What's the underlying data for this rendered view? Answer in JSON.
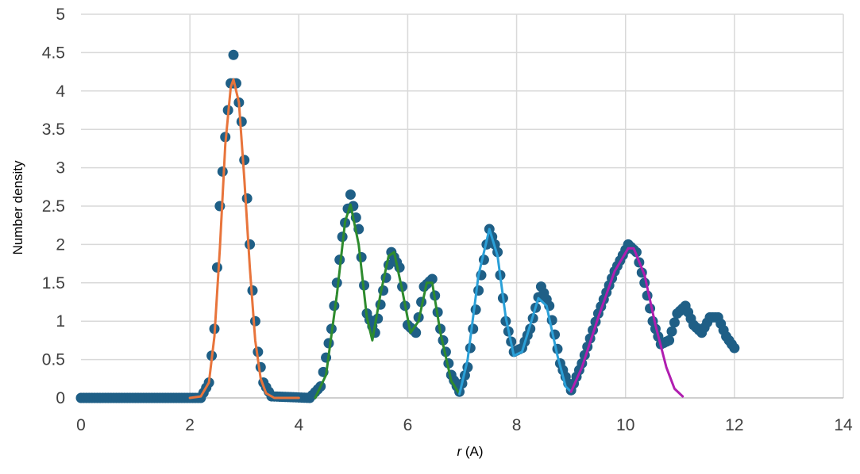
{
  "chart_data": {
    "type": "scatter",
    "title": "",
    "xlabel_italic": "r",
    "xlabel_rest": " (A)",
    "ylabel": "Number density",
    "xlim": [
      0,
      14
    ],
    "ylim": [
      0,
      5
    ],
    "x_ticks": [
      0,
      2,
      4,
      6,
      8,
      10,
      12,
      14
    ],
    "y_ticks": [
      0,
      0.5,
      1,
      1.5,
      2,
      2.5,
      3,
      3.5,
      4,
      4.5,
      5
    ],
    "grid": true,
    "legend": "none",
    "colors": {
      "points": "#1F5F86",
      "fit_1": "#E8743B",
      "fit_2": "#2E8B2E",
      "fit_3": "#2AA0D8",
      "fit_4": "#B01EB0",
      "grid": "#D9D9D9",
      "axis": "#BFBFBF"
    },
    "data_points": {
      "x_start": 0,
      "x_end": 12,
      "x_step": 0.05,
      "note_outliers": [
        [
          2.8,
          4.47
        ]
      ],
      "y_profile": [
        [
          0,
          0
        ],
        [
          2.2,
          0
        ],
        [
          2.35,
          0.2
        ],
        [
          2.45,
          0.9
        ],
        [
          2.55,
          2.5
        ],
        [
          2.65,
          3.4
        ],
        [
          2.75,
          4.1
        ],
        [
          2.85,
          4.1
        ],
        [
          2.95,
          3.6
        ],
        [
          3.05,
          2.6
        ],
        [
          3.15,
          1.4
        ],
        [
          3.25,
          0.6
        ],
        [
          3.35,
          0.2
        ],
        [
          3.5,
          0.02
        ],
        [
          4.2,
          0
        ],
        [
          4.4,
          0.15
        ],
        [
          4.6,
          0.9
        ],
        [
          4.8,
          2.1
        ],
        [
          4.95,
          2.65
        ],
        [
          5.1,
          2.2
        ],
        [
          5.25,
          1.1
        ],
        [
          5.4,
          0.85
        ],
        [
          5.55,
          1.4
        ],
        [
          5.7,
          1.9
        ],
        [
          5.85,
          1.7
        ],
        [
          6.0,
          0.95
        ],
        [
          6.15,
          0.85
        ],
        [
          6.3,
          1.45
        ],
        [
          6.45,
          1.55
        ],
        [
          6.6,
          0.9
        ],
        [
          6.8,
          0.3
        ],
        [
          6.95,
          0.08
        ],
        [
          7.1,
          0.4
        ],
        [
          7.3,
          1.4
        ],
        [
          7.5,
          2.2
        ],
        [
          7.65,
          1.9
        ],
        [
          7.8,
          1.0
        ],
        [
          7.95,
          0.6
        ],
        [
          8.1,
          0.65
        ],
        [
          8.25,
          0.9
        ],
        [
          8.45,
          1.45
        ],
        [
          8.6,
          1.2
        ],
        [
          8.8,
          0.45
        ],
        [
          9.0,
          0.1
        ],
        [
          9.2,
          0.45
        ],
        [
          9.5,
          1.1
        ],
        [
          9.8,
          1.65
        ],
        [
          10.05,
          2.0
        ],
        [
          10.2,
          1.9
        ],
        [
          10.35,
          1.5
        ],
        [
          10.5,
          1.0
        ],
        [
          10.65,
          0.7
        ],
        [
          10.8,
          0.75
        ],
        [
          10.95,
          1.1
        ],
        [
          11.1,
          1.2
        ],
        [
          11.25,
          0.95
        ],
        [
          11.4,
          0.85
        ],
        [
          11.55,
          1.05
        ],
        [
          11.7,
          1.05
        ],
        [
          11.85,
          0.8
        ],
        [
          12.0,
          0.65
        ]
      ]
    },
    "fits": [
      {
        "color_key": "fit_1",
        "points": [
          [
            2.0,
            0
          ],
          [
            2.2,
            0.02
          ],
          [
            2.35,
            0.2
          ],
          [
            2.45,
            0.8
          ],
          [
            2.55,
            1.95
          ],
          [
            2.65,
            3.3
          ],
          [
            2.75,
            4.05
          ],
          [
            2.8,
            4.15
          ],
          [
            2.9,
            3.85
          ],
          [
            3.0,
            2.85
          ],
          [
            3.1,
            1.7
          ],
          [
            3.2,
            0.75
          ],
          [
            3.3,
            0.25
          ],
          [
            3.4,
            0.06
          ],
          [
            3.55,
            0
          ],
          [
            4.0,
            0
          ]
        ]
      },
      {
        "color_key": "fit_2",
        "points": [
          [
            4.3,
            0
          ],
          [
            4.5,
            0.3
          ],
          [
            4.7,
            1.35
          ],
          [
            4.85,
            2.3
          ],
          [
            4.95,
            2.52
          ],
          [
            5.1,
            2.0
          ],
          [
            5.25,
            1.05
          ],
          [
            5.35,
            0.75
          ],
          [
            5.5,
            1.35
          ],
          [
            5.65,
            1.85
          ],
          [
            5.75,
            1.9
          ],
          [
            5.9,
            1.4
          ],
          [
            6.05,
            0.85
          ],
          [
            6.2,
            1.0
          ],
          [
            6.35,
            1.5
          ],
          [
            6.45,
            1.5
          ],
          [
            6.6,
            0.85
          ],
          [
            6.8,
            0.22
          ],
          [
            6.95,
            0.05
          ]
        ]
      },
      {
        "color_key": "fit_3",
        "points": [
          [
            6.95,
            0.05
          ],
          [
            7.1,
            0.5
          ],
          [
            7.3,
            1.6
          ],
          [
            7.5,
            2.2
          ],
          [
            7.65,
            1.85
          ],
          [
            7.8,
            1.05
          ],
          [
            7.95,
            0.55
          ],
          [
            8.1,
            0.6
          ],
          [
            8.25,
            0.95
          ],
          [
            8.4,
            1.3
          ],
          [
            8.55,
            1.2
          ],
          [
            8.75,
            0.55
          ],
          [
            8.9,
            0.15
          ],
          [
            9.0,
            0.08
          ]
        ]
      },
      {
        "color_key": "fit_4",
        "points": [
          [
            9.0,
            0.08
          ],
          [
            9.2,
            0.4
          ],
          [
            9.5,
            1.05
          ],
          [
            9.8,
            1.65
          ],
          [
            10.05,
            1.95
          ],
          [
            10.15,
            1.95
          ],
          [
            10.35,
            1.6
          ],
          [
            10.55,
            0.95
          ],
          [
            10.75,
            0.4
          ],
          [
            10.9,
            0.12
          ],
          [
            11.05,
            0.02
          ]
        ]
      }
    ]
  }
}
